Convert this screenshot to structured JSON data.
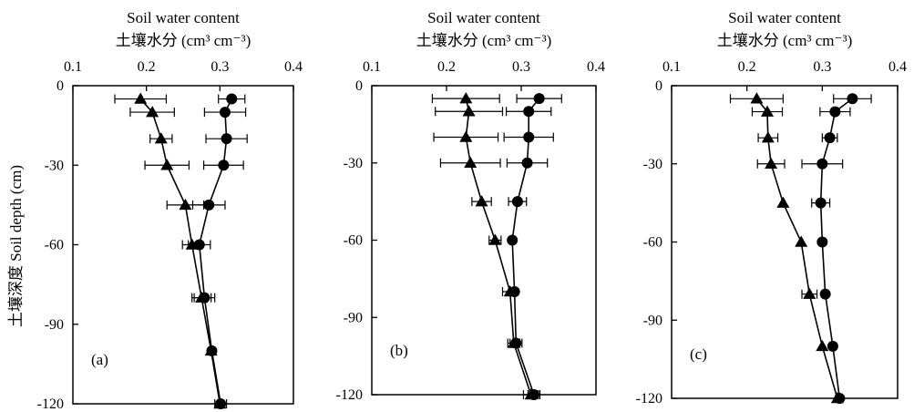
{
  "figure": {
    "ylabel": "土壤深度 Soil depth (cm)"
  },
  "chart_data": [
    {
      "type": "line",
      "panel_label": "(a)",
      "title_en": "Soil water content",
      "title_cn": "土壤水分 (cm³ cm⁻³)",
      "xlim": [
        0.1,
        0.4
      ],
      "ylim": [
        -120,
        0
      ],
      "xticks": [
        0.1,
        0.2,
        0.3,
        0.4
      ],
      "xtick_labels": [
        "0.1",
        "0.2",
        "0.3",
        "0.4"
      ],
      "yticks": [
        0,
        -30,
        -60,
        -90,
        -120
      ],
      "ytick_labels": [
        "0",
        "-30",
        "-60",
        "-90",
        "-120"
      ],
      "series": [
        {
          "marker": "circle",
          "points": [
            {
              "x": 0.316,
              "y": -5,
              "err": 0.018
            },
            {
              "x": 0.307,
              "y": -10,
              "err": 0.028
            },
            {
              "x": 0.309,
              "y": -20,
              "err": 0.028
            },
            {
              "x": 0.305,
              "y": -30,
              "err": 0.027
            },
            {
              "x": 0.285,
              "y": -45,
              "err": 0.022
            },
            {
              "x": 0.272,
              "y": -60,
              "err": 0.015
            },
            {
              "x": 0.279,
              "y": -80,
              "err": 0.014
            },
            {
              "x": 0.289,
              "y": -100,
              "err": 0.0
            },
            {
              "x": 0.301,
              "y": -120,
              "err": 0.008
            }
          ]
        },
        {
          "marker": "triangle",
          "points": [
            {
              "x": 0.192,
              "y": -5,
              "err": 0.035
            },
            {
              "x": 0.208,
              "y": -10,
              "err": 0.03
            },
            {
              "x": 0.22,
              "y": -20,
              "err": 0.015
            },
            {
              "x": 0.228,
              "y": -30,
              "err": 0.03
            },
            {
              "x": 0.253,
              "y": -45,
              "err": 0.025
            },
            {
              "x": 0.262,
              "y": -60,
              "err": 0.013
            },
            {
              "x": 0.275,
              "y": -80,
              "err": 0.013
            },
            {
              "x": 0.288,
              "y": -100,
              "err": 0.0
            },
            {
              "x": 0.3,
              "y": -120,
              "err": 0.0
            }
          ]
        }
      ]
    },
    {
      "type": "line",
      "panel_label": "(b)",
      "title_en": "Soil water content",
      "title_cn": "土壤水分 (cm³ cm⁻³)",
      "xlim": [
        0.1,
        0.4
      ],
      "ylim": [
        -120,
        0
      ],
      "xticks": [
        0.1,
        0.2,
        0.3,
        0.4
      ],
      "xtick_labels": [
        "0.1",
        "0.2",
        "0.3",
        "0.4"
      ],
      "yticks": [
        0,
        -30,
        -60,
        -90,
        -120
      ],
      "ytick_labels": [
        "0",
        "-30",
        "-60",
        "-90",
        "-120"
      ],
      "series": [
        {
          "marker": "circle",
          "points": [
            {
              "x": 0.324,
              "y": -5,
              "err": 0.03
            },
            {
              "x": 0.31,
              "y": -10,
              "err": 0.03
            },
            {
              "x": 0.31,
              "y": -20,
              "err": 0.033
            },
            {
              "x": 0.308,
              "y": -30,
              "err": 0.027
            },
            {
              "x": 0.295,
              "y": -45,
              "err": 0.012
            },
            {
              "x": 0.288,
              "y": -60,
              "err": 0.0
            },
            {
              "x": 0.291,
              "y": -80,
              "err": 0.0
            },
            {
              "x": 0.293,
              "y": -100,
              "err": 0.008
            },
            {
              "x": 0.317,
              "y": -120,
              "err": 0.008
            }
          ]
        },
        {
          "marker": "triangle",
          "points": [
            {
              "x": 0.226,
              "y": -5,
              "err": 0.045
            },
            {
              "x": 0.23,
              "y": -10,
              "err": 0.045
            },
            {
              "x": 0.226,
              "y": -20,
              "err": 0.043
            },
            {
              "x": 0.232,
              "y": -30,
              "err": 0.04
            },
            {
              "x": 0.247,
              "y": -45,
              "err": 0.013
            },
            {
              "x": 0.265,
              "y": -60,
              "err": 0.008
            },
            {
              "x": 0.285,
              "y": -80,
              "err": 0.01
            },
            {
              "x": 0.29,
              "y": -100,
              "err": 0.008
            },
            {
              "x": 0.313,
              "y": -120,
              "err": 0.01
            }
          ]
        }
      ]
    },
    {
      "type": "line",
      "panel_label": "(c)",
      "title_en": "Soil water content",
      "title_cn": "土壤水分 (cm³ cm⁻³)",
      "xlim": [
        0.1,
        0.4
      ],
      "ylim": [
        -120,
        0
      ],
      "xticks": [
        0.1,
        0.2,
        0.3,
        0.4
      ],
      "xtick_labels": [
        "0.1",
        "0.2",
        "0.3",
        "0.4"
      ],
      "yticks": [
        0,
        -30,
        -60,
        -90,
        -120
      ],
      "ytick_labels": [
        "0",
        "-30",
        "-60",
        "-90",
        "-120"
      ],
      "series": [
        {
          "marker": "circle",
          "points": [
            {
              "x": 0.34,
              "y": -5,
              "err": 0.025
            },
            {
              "x": 0.317,
              "y": -10,
              "err": 0.02
            },
            {
              "x": 0.31,
              "y": -20,
              "err": 0.01
            },
            {
              "x": 0.3,
              "y": -30,
              "err": 0.027
            },
            {
              "x": 0.298,
              "y": -45,
              "err": 0.012
            },
            {
              "x": 0.3,
              "y": -60,
              "err": 0.0
            },
            {
              "x": 0.304,
              "y": -80,
              "err": 0.0
            },
            {
              "x": 0.314,
              "y": -100,
              "err": 0.0
            },
            {
              "x": 0.323,
              "y": -120,
              "err": 0.0
            }
          ]
        },
        {
          "marker": "triangle",
          "points": [
            {
              "x": 0.213,
              "y": -5,
              "err": 0.035
            },
            {
              "x": 0.227,
              "y": -10,
              "err": 0.02
            },
            {
              "x": 0.228,
              "y": -20,
              "err": 0.013
            },
            {
              "x": 0.232,
              "y": -30,
              "err": 0.018
            },
            {
              "x": 0.248,
              "y": -45,
              "err": 0.0
            },
            {
              "x": 0.272,
              "y": -60,
              "err": 0.0
            },
            {
              "x": 0.283,
              "y": -80,
              "err": 0.01
            },
            {
              "x": 0.3,
              "y": -100,
              "err": 0.0
            },
            {
              "x": 0.32,
              "y": -120,
              "err": 0.0
            }
          ]
        }
      ]
    }
  ]
}
